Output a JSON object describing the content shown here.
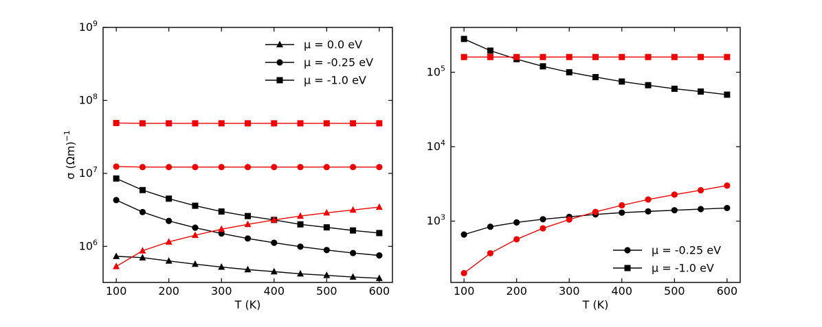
{
  "colors": {
    "black": "#000000",
    "red": "#ee0000"
  },
  "chart_data": [
    {
      "type": "line",
      "xlabel": "T (K)",
      "ylabel_main": "σ (Ωm)",
      "ylabel_sup": "−1",
      "yscale": "log",
      "xlim": [
        75,
        625
      ],
      "ylim": [
        320000,
        1000000000
      ],
      "xticks": [
        100,
        200,
        300,
        400,
        500,
        600
      ],
      "xtick_labels": [
        "100",
        "200",
        "300",
        "400",
        "500",
        "600"
      ],
      "yticks": [
        1000000,
        10000000,
        100000000,
        1000000000
      ],
      "ytick_base": [
        "10",
        "10",
        "10",
        "10"
      ],
      "ytick_exp": [
        "6",
        "7",
        "8",
        "9"
      ],
      "legend_position": "top-right",
      "legend": [
        {
          "label": "μ = 0.0 eV",
          "marker": "triangle",
          "color": "#000000"
        },
        {
          "label": "μ = -0.25 eV",
          "marker": "circle",
          "color": "#000000"
        },
        {
          "label": "μ = -1.0 eV",
          "marker": "square",
          "color": "#000000"
        }
      ],
      "x": [
        100,
        150,
        200,
        250,
        300,
        350,
        400,
        450,
        500,
        550,
        600
      ],
      "series": [
        {
          "name": "μ = 0.0 eV (black)",
          "marker": "triangle",
          "color": "#000000",
          "values": [
            730000,
            700000,
            630000,
            570000,
            520000,
            480000,
            450000,
            420000,
            400000,
            380000,
            365000
          ]
        },
        {
          "name": "μ = -0.25 eV (black)",
          "marker": "circle",
          "color": "#000000",
          "values": [
            4300000,
            2950000,
            2230000,
            1800000,
            1500000,
            1280000,
            1120000,
            990000,
            890000,
            810000,
            750000
          ]
        },
        {
          "name": "μ = -1.0 eV (black)",
          "marker": "square",
          "color": "#000000",
          "values": [
            8500000,
            5900000,
            4500000,
            3600000,
            3000000,
            2600000,
            2300000,
            2000000,
            1820000,
            1650000,
            1520000
          ]
        },
        {
          "name": "μ = 0.0 eV (red)",
          "marker": "triangle",
          "color": "#ee0000",
          "values": [
            530000,
            870000,
            1150000,
            1420000,
            1720000,
            2000000,
            2300000,
            2600000,
            2880000,
            3150000,
            3450000
          ]
        },
        {
          "name": "μ = -0.25 eV (red)",
          "marker": "circle",
          "color": "#ee0000",
          "values": [
            12400000,
            12200000,
            12200000,
            12200000,
            12200000,
            12200000,
            12200000,
            12200000,
            12200000,
            12200000,
            12200000
          ]
        },
        {
          "name": "μ = -1.0 eV (red)",
          "marker": "square",
          "color": "#ee0000",
          "values": [
            49000000,
            48500000,
            48500000,
            48500000,
            48500000,
            48500000,
            48500000,
            48500000,
            48500000,
            48500000,
            48500000
          ]
        }
      ]
    },
    {
      "type": "line",
      "xlabel": "T (K)",
      "yscale": "log",
      "xlim": [
        75,
        625
      ],
      "ylim": [
        150,
        400000
      ],
      "xticks": [
        100,
        200,
        300,
        400,
        500,
        600
      ],
      "xtick_labels": [
        "100",
        "200",
        "300",
        "400",
        "500",
        "600"
      ],
      "yticks": [
        1000,
        10000,
        100000
      ],
      "ytick_base": [
        "10",
        "10",
        "10"
      ],
      "ytick_exp": [
        "3",
        "4",
        "5"
      ],
      "legend_position": "bottom-right",
      "legend": [
        {
          "label": "μ = -0.25 eV",
          "marker": "circle",
          "color": "#000000"
        },
        {
          "label": "μ = -1.0 eV",
          "marker": "square",
          "color": "#000000"
        }
      ],
      "x": [
        100,
        150,
        200,
        250,
        300,
        350,
        400,
        450,
        500,
        550,
        600
      ],
      "series": [
        {
          "name": "μ = -0.25 eV (black)",
          "marker": "circle",
          "color": "#000000",
          "values": [
            660,
            840,
            960,
            1060,
            1140,
            1230,
            1300,
            1350,
            1400,
            1450,
            1500
          ]
        },
        {
          "name": "μ = -1.0 eV (black)",
          "marker": "square",
          "color": "#000000",
          "values": [
            280000,
            195000,
            150000,
            120000,
            100000,
            86000,
            75000,
            67000,
            60000,
            55000,
            50000
          ]
        },
        {
          "name": "μ = -0.25 eV (red)",
          "marker": "circle",
          "color": "#ee0000",
          "values": [
            200,
            370,
            570,
            800,
            1050,
            1330,
            1630,
            1950,
            2270,
            2600,
            3000
          ]
        },
        {
          "name": "μ = -1.0 eV (red)",
          "marker": "square",
          "color": "#ee0000",
          "values": [
            160000,
            160000,
            160000,
            160000,
            160000,
            160000,
            160000,
            160000,
            160000,
            160000,
            160000
          ]
        }
      ]
    }
  ]
}
